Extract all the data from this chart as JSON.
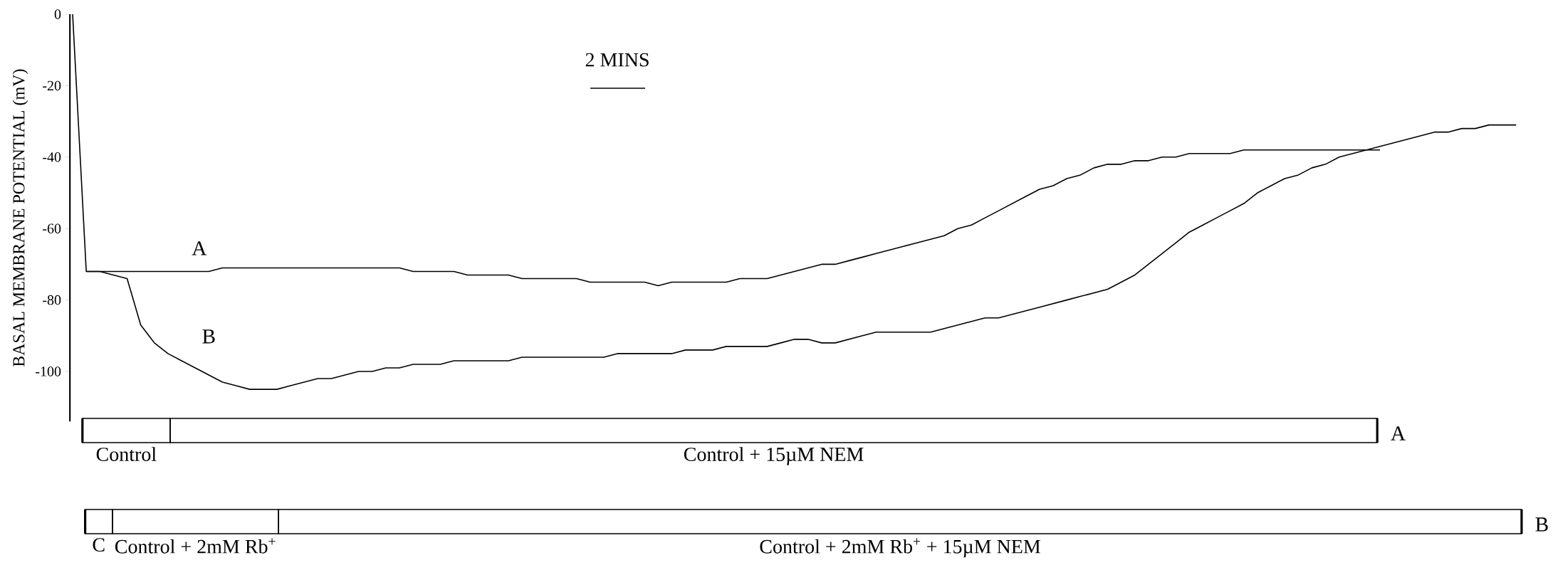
{
  "chart_data": {
    "type": "line",
    "ylabel": "BASAL MEMBRANE POTENTIAL (mV)",
    "annotations": [
      "2 MINS",
      "Control",
      "Control + 15µM NEM",
      "C",
      "Control + 2mM Rb$^{+}$",
      "Control + 2mM Rb$^{+}$ + 15µM NEM"
    ],
    "ylim": [
      -114,
      0
    ],
    "yticks": [
      0,
      -20,
      -40,
      -60,
      -80,
      -100
    ],
    "tick_labels": "y",
    "legend": "bottom right",
    "categories": [
      null,
      null,
      null,
      null,
      null,
      null,
      null,
      null,
      null,
      null,
      null,
      null,
      null,
      null,
      null,
      null,
      null,
      null,
      null,
      null,
      null,
      null,
      null,
      null,
      null,
      null,
      null,
      null,
      null,
      null,
      null,
      null,
      null,
      null,
      null,
      null,
      null,
      null,
      null,
      null,
      null,
      null,
      null,
      null,
      null,
      null,
      null,
      null,
      null,
      null,
      null,
      null,
      null,
      null,
      null,
      null,
      null,
      null,
      null,
      null,
      null,
      null,
      null,
      null,
      null,
      null,
      null,
      null,
      null,
      null,
      null,
      null,
      null,
      null,
      null,
      null,
      null,
      null,
      null,
      null,
      null,
      null,
      null,
      null,
      null,
      null,
      null,
      null,
      null,
      null,
      null,
      null,
      null,
      null,
      null,
      null,
      null,
      null,
      null,
      null,
      null,
      null,
      null,
      null,
      null,
      null,
      null
    ],
    "series": [
      {
        "name": "A",
        "color": "#000000",
        "values": [
          0,
          -72,
          -72,
          -72,
          -72,
          -72,
          -72,
          -72,
          -72,
          -72,
          -72,
          -71,
          -71,
          -71,
          -71,
          -71,
          -71,
          -71,
          -71,
          -71,
          -71,
          -71,
          -71,
          -71,
          -71,
          -72,
          -72,
          -72,
          -72,
          -73,
          -73,
          -73,
          -73,
          -74,
          -74,
          -74,
          -74,
          -74,
          -75,
          -75,
          -75,
          -75,
          -75,
          -76,
          -75,
          -75,
          -75,
          -75,
          -75,
          -74,
          -74,
          -74,
          -73,
          -72,
          -71,
          -70,
          -70,
          -69,
          -68,
          -67,
          -66,
          -65,
          -64,
          -63,
          -62,
          -60,
          -59,
          -57,
          -55,
          -53,
          -51,
          -49,
          -48,
          -46,
          -45,
          -43,
          -42,
          -42,
          -41,
          -41,
          -40,
          -40,
          -39,
          -39,
          -39,
          -39,
          -38,
          -38,
          -38,
          -38,
          -38,
          -38,
          -38,
          -38,
          -38,
          -38,
          -38,
          null,
          null,
          null,
          null,
          null,
          null,
          null,
          null,
          null,
          null
        ]
      },
      {
        "name": "B",
        "color": "#000000",
        "values": [
          null,
          -72,
          -72,
          -73,
          -74,
          -87,
          -92,
          -95,
          -97,
          -99,
          -101,
          -103,
          -104,
          -105,
          -105,
          -105,
          -104,
          -103,
          -102,
          -102,
          -101,
          -100,
          -100,
          -99,
          -99,
          -98,
          -98,
          -98,
          -97,
          -97,
          -97,
          -97,
          -97,
          -96,
          -96,
          -96,
          -96,
          -96,
          -96,
          -96,
          -95,
          -95,
          -95,
          -95,
          -95,
          -94,
          -94,
          -94,
          -93,
          -93,
          -93,
          -93,
          -92,
          -91,
          -91,
          -92,
          -92,
          -91,
          -90,
          -89,
          -89,
          -89,
          -89,
          -89,
          -88,
          -87,
          -86,
          -85,
          -85,
          -84,
          -83,
          -82,
          -81,
          -80,
          -79,
          -78,
          -77,
          -75,
          -73,
          -70,
          -67,
          -64,
          -61,
          -59,
          -57,
          -55,
          -53,
          -50,
          -48,
          -46,
          -45,
          -43,
          -42,
          -40,
          -39,
          -38,
          -37,
          -36,
          -35,
          -34,
          -33,
          -33,
          -32,
          -32,
          -31,
          -31,
          -31
        ]
      }
    ]
  }
}
